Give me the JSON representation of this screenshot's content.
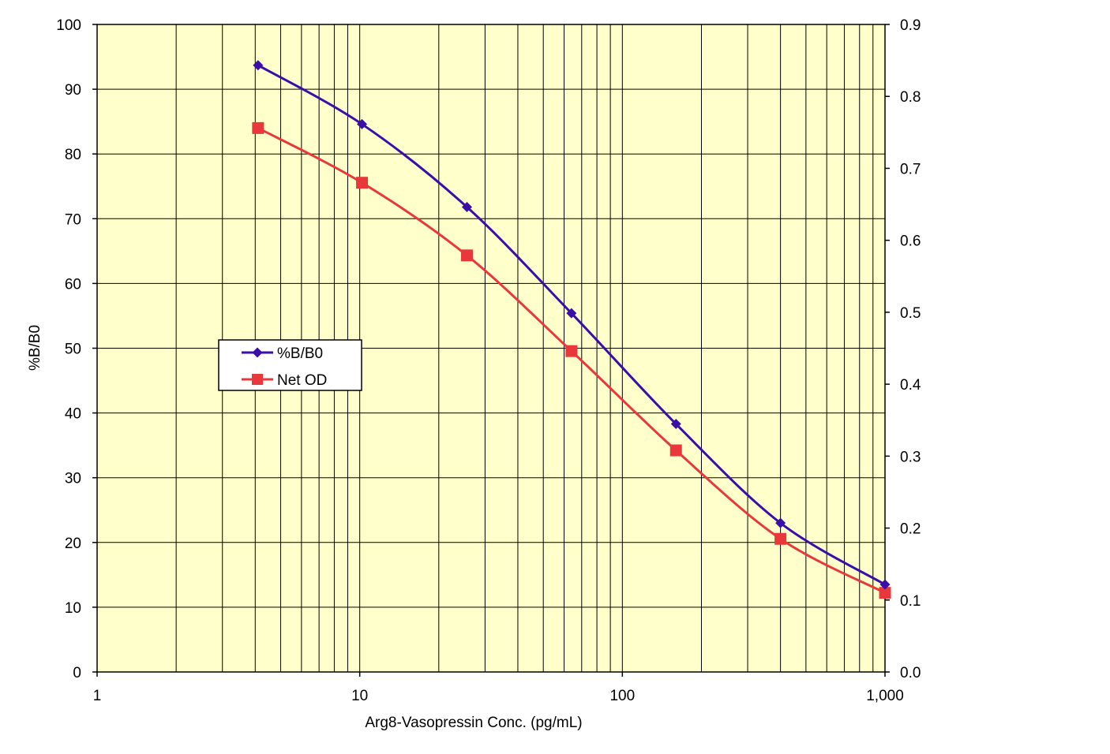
{
  "chart_data": {
    "type": "line",
    "xlabel": "Arg8-Vasopressin Conc. (pg/mL)",
    "ylabel": "%B/B0",
    "x_scale": "log",
    "xlim": [
      1,
      1000
    ],
    "ylim": [
      0,
      100
    ],
    "y2lim": [
      0,
      0.9
    ],
    "x_ticks": [
      "1",
      "10",
      "100",
      "1,000"
    ],
    "y_ticks": [
      "0",
      "10",
      "20",
      "30",
      "40",
      "50",
      "60",
      "70",
      "80",
      "90",
      "100"
    ],
    "y2_ticks": [
      "0.0",
      "0.1",
      "0.2",
      "0.3",
      "0.4",
      "0.5",
      "0.6",
      "0.7",
      "0.8",
      "0.9"
    ],
    "grid": true,
    "plot_background": "#ffffcc",
    "legend_position": "middle-left",
    "series": [
      {
        "name": "%B/B0",
        "axis": "left",
        "color": "#3a0ea8",
        "marker": "diamond",
        "x": [
          4.1,
          10.2,
          25.6,
          64,
          160,
          400,
          1000
        ],
        "values": [
          93.7,
          84.6,
          71.8,
          55.4,
          38.3,
          23.0,
          13.5
        ]
      },
      {
        "name": "Net OD",
        "axis": "right",
        "color": "#e8383b",
        "marker": "square",
        "x": [
          4.1,
          10.2,
          25.6,
          64,
          160,
          400,
          1000
        ],
        "values": [
          0.756,
          0.68,
          0.579,
          0.446,
          0.308,
          0.185,
          0.11
        ]
      }
    ]
  }
}
